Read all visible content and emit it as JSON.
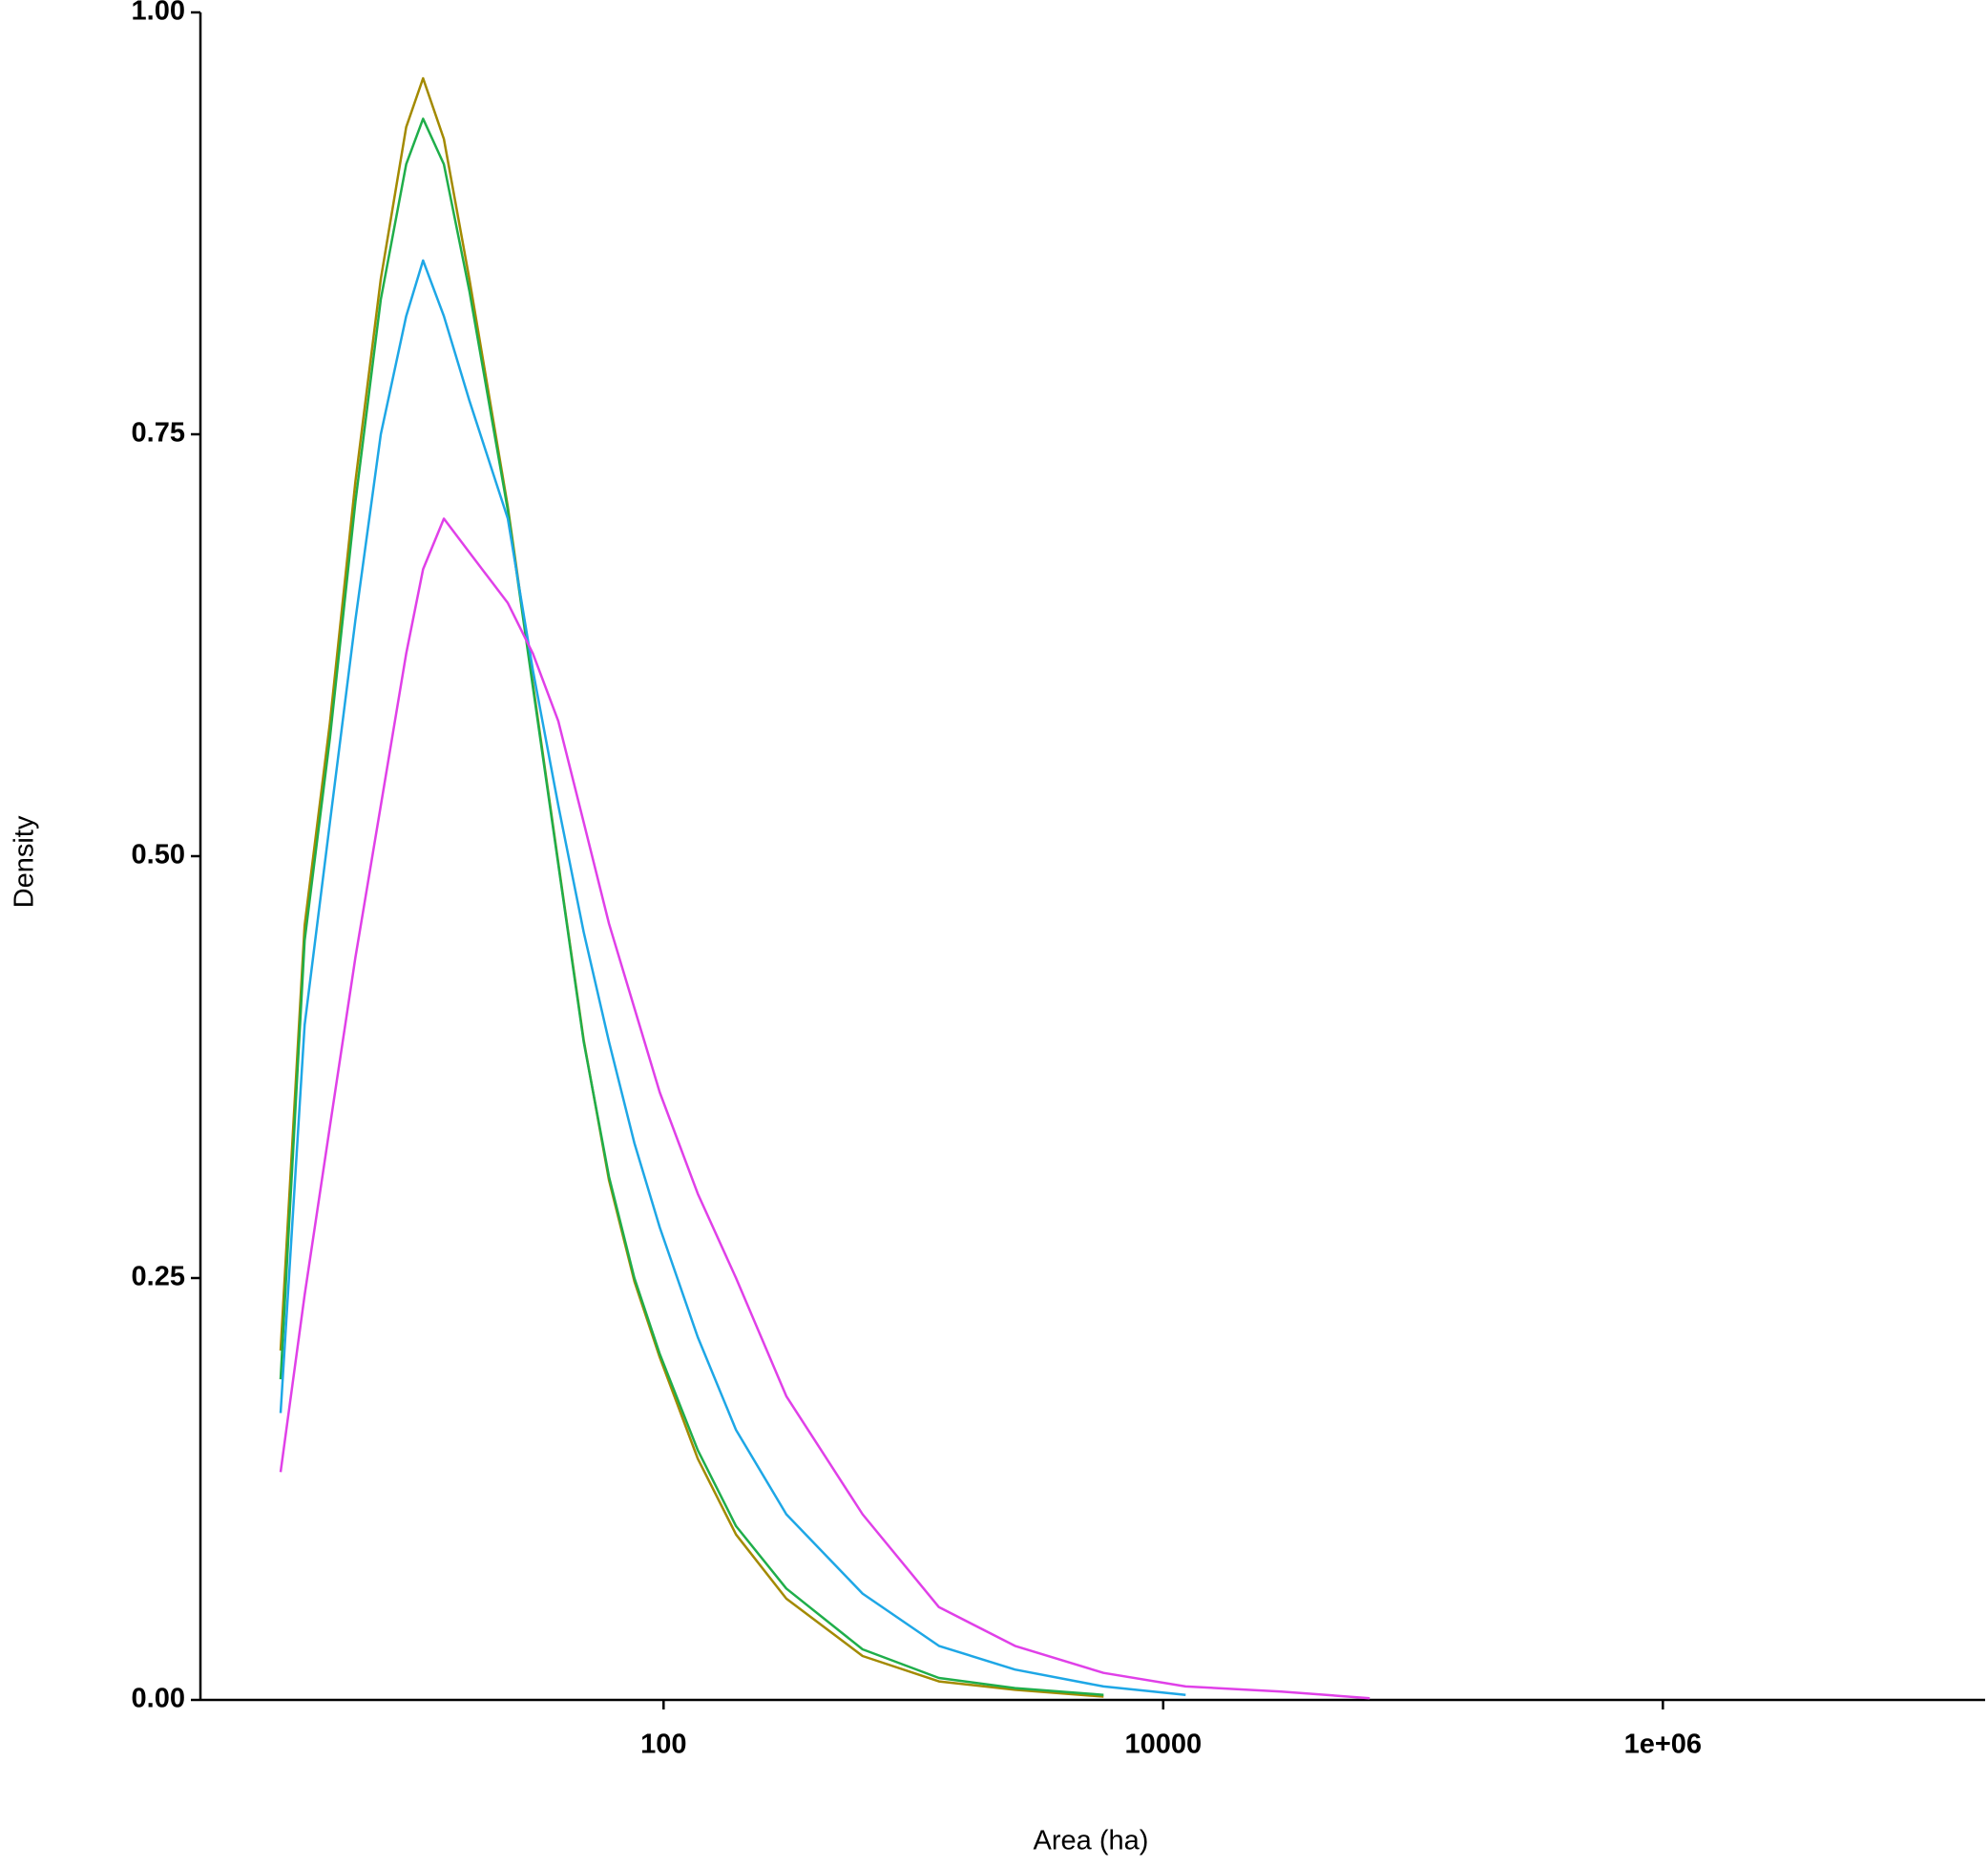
{
  "chart_data": {
    "type": "line",
    "x_label": "Area (ha)",
    "y_label": "Density",
    "x": [
      2.93,
      3.66,
      4.62,
      5.84,
      7.38,
      9.33,
      10.9,
      13.2,
      16.7,
      23.8,
      30.0,
      37.9,
      47.9,
      60.5,
      76.4,
      96.6,
      137,
      195,
      310,
      626,
      1265,
      2550,
      5770,
      12300,
      29600,
      67100
    ],
    "series": [
      {
        "color": "#a38a00",
        "values": [
          0.207,
          0.459,
          0.579,
          0.722,
          0.842,
          0.932,
          0.961,
          0.925,
          0.842,
          0.707,
          0.602,
          0.496,
          0.391,
          0.308,
          0.248,
          0.203,
          0.143,
          0.098,
          0.06,
          0.026,
          0.011,
          0.006,
          0.002,
          null,
          null,
          null
        ]
      },
      {
        "color": "#1fae4a",
        "values": [
          0.19,
          0.45,
          0.57,
          0.71,
          0.83,
          0.91,
          0.937,
          0.91,
          0.835,
          0.705,
          0.6,
          0.495,
          0.39,
          0.31,
          0.25,
          0.205,
          0.148,
          0.103,
          0.066,
          0.03,
          0.013,
          0.007,
          0.003,
          null,
          null,
          null
        ]
      },
      {
        "color": "#1ea7e6",
        "values": [
          0.17,
          0.4,
          0.52,
          0.64,
          0.75,
          0.82,
          0.853,
          0.82,
          0.77,
          0.7,
          0.61,
          0.53,
          0.455,
          0.39,
          0.33,
          0.28,
          0.215,
          0.16,
          0.11,
          0.063,
          0.032,
          0.018,
          0.008,
          0.003,
          null,
          null
        ]
      },
      {
        "color": "#e040e8",
        "values": [
          0.135,
          0.24,
          0.34,
          0.44,
          0.53,
          0.62,
          0.67,
          0.7,
          0.68,
          0.65,
          0.62,
          0.58,
          0.52,
          0.46,
          0.41,
          0.36,
          0.3,
          0.25,
          0.18,
          0.11,
          0.055,
          0.032,
          0.016,
          0.008,
          0.005,
          0.001
        ]
      }
    ],
    "x_scale": "log",
    "xlim": [
      1.4,
      19500000
    ],
    "xticks": [
      100,
      10000,
      {
        "value": 1000000,
        "label": "1e+06"
      }
    ],
    "ylim": [
      0,
      1
    ],
    "yticks": [
      {
        "value": 0,
        "label": "0.00"
      },
      {
        "value": 0.25,
        "label": "0.25"
      },
      {
        "value": 0.5,
        "label": "0.50"
      },
      {
        "value": 0.75,
        "label": "0.75"
      },
      {
        "value": 1,
        "label": "1.00"
      }
    ],
    "grid": false
  }
}
